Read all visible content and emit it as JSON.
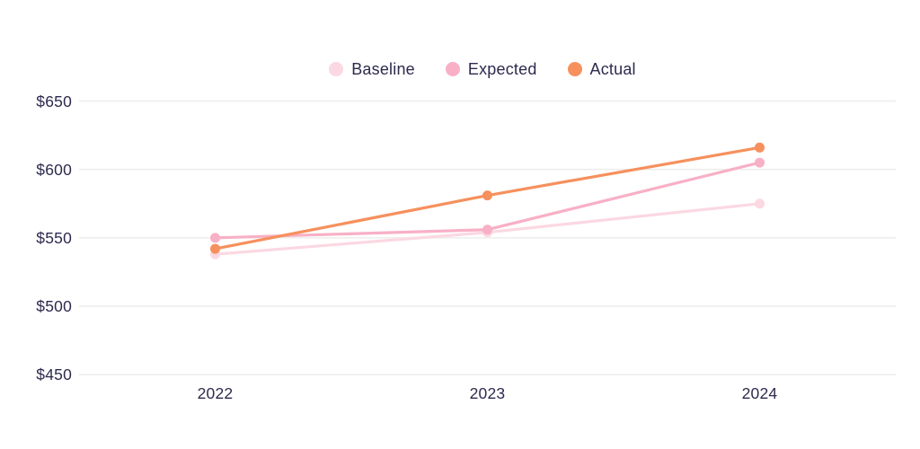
{
  "chart_data": {
    "type": "line",
    "categories": [
      "2022",
      "2023",
      "2024"
    ],
    "series": [
      {
        "name": "Baseline",
        "color": "#fbd8e2",
        "values": [
          538,
          554,
          575
        ]
      },
      {
        "name": "Expected",
        "color": "#f8b0c6",
        "values": [
          550,
          556,
          605
        ]
      },
      {
        "name": "Actual",
        "color": "#f6905d",
        "values": [
          542,
          581,
          616
        ]
      }
    ],
    "title": "",
    "xlabel": "",
    "ylabel": "",
    "ylim": [
      450,
      650
    ],
    "yticks": [
      450,
      500,
      550,
      600,
      650
    ],
    "ytick_labels": [
      "$450",
      "$500",
      "$550",
      "$600",
      "$650"
    ],
    "xtick_labels": [
      "2022",
      "2023",
      "2024"
    ],
    "legend": {
      "position": "top-center",
      "labels": [
        "Baseline",
        "Expected",
        "Actual"
      ]
    },
    "grid": "horizontal-only",
    "colors": {
      "background": "#ffffff",
      "grid": "#ededed",
      "axis_text": "#2d2a4e"
    }
  }
}
